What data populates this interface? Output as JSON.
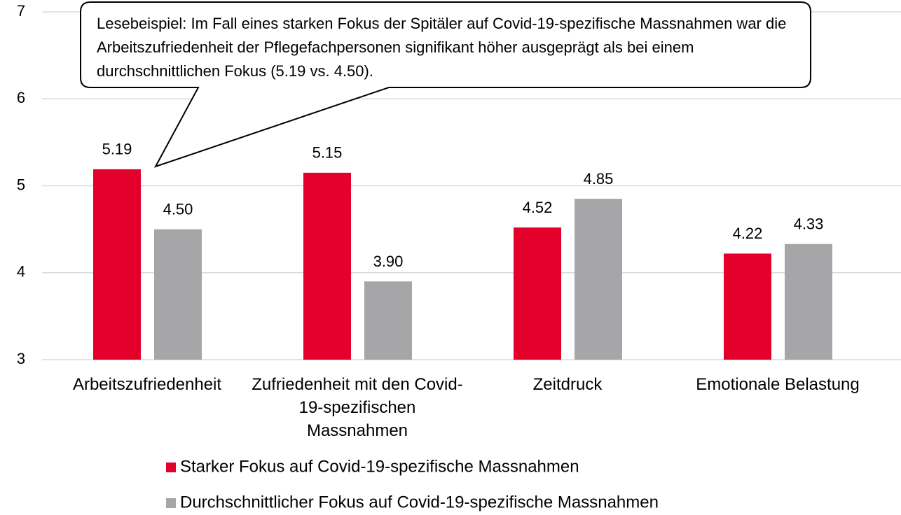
{
  "chart_data": {
    "type": "bar",
    "annotation": "Lesebeispiel: Im Fall eines starken Fokus der Spitäler auf Covid-19-spezifische Massnahmen war die Arbeitszufriedenheit der Pflegefachpersonen signifikant höher ausgeprägt als bei einem durchschnittlichen Fokus (5.19 vs. 4.50).",
    "categories": [
      "Arbeitszufriedenheit",
      "Zufriedenheit mit den Covid-19-spezifischen Massnahmen",
      "Zeitdruck",
      "Emotionale Belastung"
    ],
    "series": [
      {
        "name": "Starker Fokus auf Covid-19-spezifische Massnahmen",
        "color": "#e3002b",
        "values": [
          5.19,
          5.15,
          4.52,
          4.22
        ],
        "value_labels": [
          "5.19",
          "5.15",
          "4.52",
          "4.22"
        ]
      },
      {
        "name": "Durchschnittlicher Fokus auf Covid-19-spezifische Massnahmen",
        "color": "#a6a6a8",
        "values": [
          4.5,
          3.9,
          4.85,
          4.33
        ],
        "value_labels": [
          "4.50",
          "3.90",
          "4.85",
          "4.33"
        ]
      }
    ],
    "ylim": [
      3,
      7
    ],
    "yticks": [
      3,
      4,
      5,
      6,
      7
    ],
    "grid": true
  }
}
